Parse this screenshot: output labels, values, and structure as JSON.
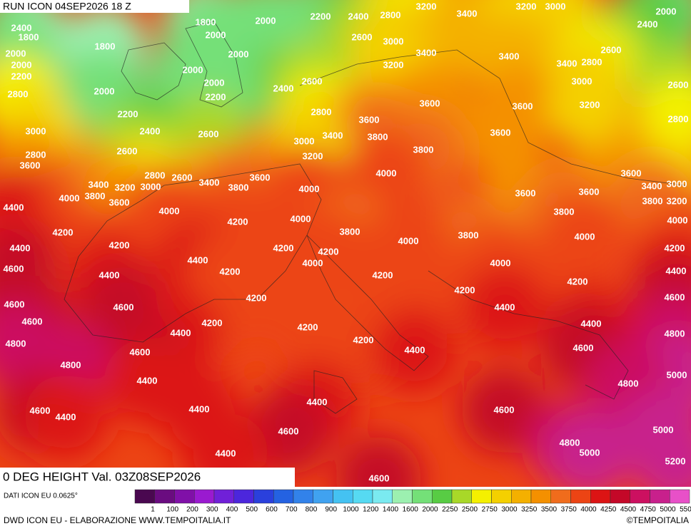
{
  "header": {
    "run": "RUN ICON 04SEP2026 18 Z",
    "field": "0 DEG HEIGHT Val. 03Z08SEP2026"
  },
  "map": {
    "contour_labels": [
      3200,
      3400,
      3200,
      3000,
      2000,
      2400,
      2200,
      2400,
      2800,
      2400,
      1800,
      2000,
      1800,
      2000,
      2600,
      3000,
      3400,
      3400,
      2600,
      1800,
      2000,
      2000,
      2000,
      3200,
      3400,
      2800,
      2000,
      2200,
      2400,
      2600,
      2000,
      2000,
      2200,
      3000,
      2600,
      2800,
      3600,
      3600,
      3200,
      2800,
      3600,
      2200,
      2800,
      3000,
      2400,
      2600,
      3400,
      3000,
      3800,
      3600,
      2800,
      2600,
      3200,
      3800,
      3600,
      2800,
      2600,
      3600,
      4000,
      3400,
      3200,
      3000,
      3400,
      3800,
      4000,
      3600,
      3400,
      3000,
      4000,
      3800,
      3600,
      3600,
      3600,
      3800,
      3200,
      4400,
      4000,
      4200,
      4000,
      3800,
      4000,
      4200,
      3800,
      3800,
      4000,
      4000,
      4400,
      4200,
      4200,
      4200,
      4200,
      4600,
      4400,
      4200,
      4000,
      4000,
      4400,
      4400,
      4200,
      4200,
      4600,
      4600,
      4200,
      4200,
      4600,
      4400,
      4600,
      4200,
      4200,
      4400,
      4800,
      4400,
      4200,
      4400,
      4800,
      4600,
      4600,
      4800,
      5000,
      4400,
      4800,
      4400,
      4600,
      4400,
      4400,
      4600,
      4600,
      5000,
      4800,
      5000,
      4400,
      5200,
      4600
    ]
  },
  "legend": {
    "source": "DATI ICON EU 0.0625°",
    "levels": [
      1,
      100,
      200,
      300,
      400,
      500,
      600,
      700,
      800,
      900,
      1000,
      1200,
      1400,
      1600,
      2000,
      2250,
      2500,
      2750,
      3000,
      3250,
      3500,
      3750,
      4000,
      4250,
      4500,
      4750,
      5000,
      5500
    ],
    "colors": [
      "#4a0850",
      "#6a0c80",
      "#8010a8",
      "#9a1ad0",
      "#7020d8",
      "#4c26dc",
      "#2a40dc",
      "#2462e2",
      "#3282ea",
      "#40a2f0",
      "#44c2f2",
      "#56daf2",
      "#7aeaf0",
      "#9cf0b0",
      "#74e078",
      "#58cc44",
      "#a8d828",
      "#f4f000",
      "#f4d000",
      "#f4b000",
      "#f49000",
      "#f06c1c",
      "#ec4414",
      "#dc1414",
      "#c40828",
      "#cc1060",
      "#c8208c",
      "#e850c8"
    ]
  },
  "footer": {
    "credit": "DWD ICON EU - ELABORAZIONE WWW.TEMPOITALIA.IT",
    "copyright": "©TEMPOITALIA"
  }
}
